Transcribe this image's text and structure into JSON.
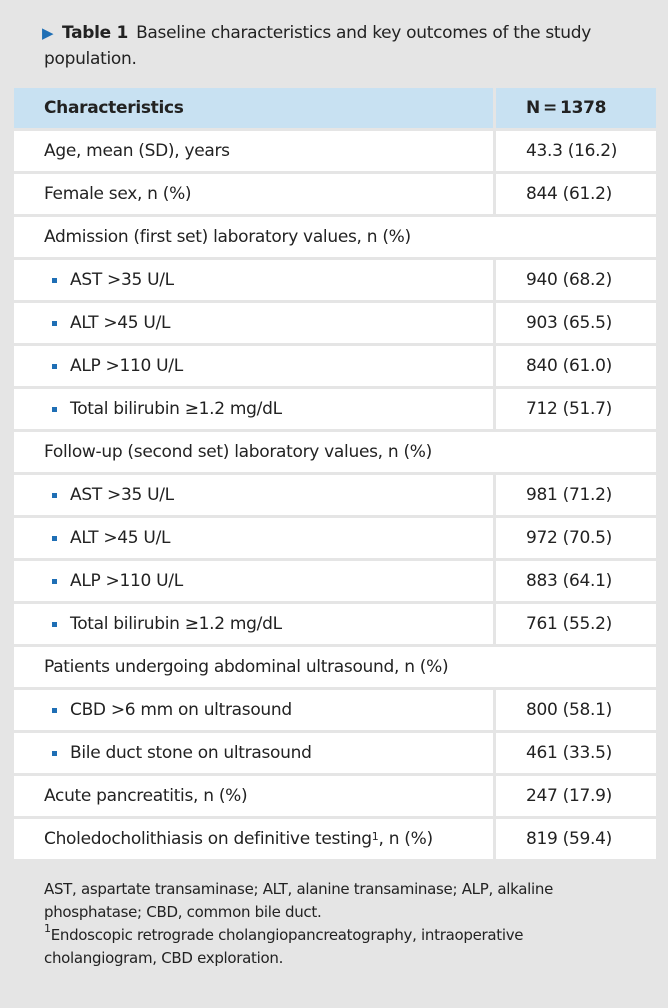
{
  "caption": {
    "label": "Table 1",
    "text": "Baseline characteristics and key outcomes of the study population."
  },
  "table": {
    "header": [
      "Characteristics",
      "N = 1378"
    ],
    "rows": [
      {
        "label": "Age, mean (SD), years",
        "value": "43.3 (16.2)"
      },
      {
        "label": "Female sex, n (%)",
        "value": "844 (61.2)"
      },
      {
        "label": "Admission (first set) laboratory values, n (%)",
        "items": [
          {
            "label": "AST >35 U/L",
            "value": "940 (68.2)"
          },
          {
            "label": "ALT >45 U/L",
            "value": "903 (65.5)"
          },
          {
            "label": "ALP >110 U/L",
            "value": "840 (61.0)"
          },
          {
            "label": "Total bilirubin ≥1.2 mg/dL",
            "value": "712 (51.7)"
          }
        ]
      },
      {
        "label": "Follow-up (second set) laboratory values, n (%)",
        "items": [
          {
            "label": "AST >35 U/L",
            "value": "981 (71.2)"
          },
          {
            "label": "ALT >45 U/L",
            "value": "972 (70.5)"
          },
          {
            "label": "ALP >110 U/L",
            "value": "883 (64.1)"
          },
          {
            "label": "Total bilirubin ≥1.2 mg/dL",
            "value": "761 (55.2)"
          }
        ]
      },
      {
        "label": "Patients undergoing abdominal ultrasound, n (%)",
        "items": [
          {
            "label": "CBD >6 mm on ultrasound",
            "value": "800 (58.1)"
          },
          {
            "label": "Bile duct stone on ultrasound",
            "value": "461 (33.5)"
          }
        ]
      },
      {
        "label": "Acute pancreatitis, n (%)",
        "value": "247 (17.9)"
      },
      {
        "label": "Choledocholithiasis on definitive testing",
        "footnote_mark": "1",
        "label_suffix": ", n (%)",
        "value": "819 (59.4)"
      }
    ]
  },
  "footnotes": {
    "abbreviations": "AST, aspartate transaminase; ALT, alanine transaminase; ALP, alkaline phosphatase; CBD, common bile duct.",
    "note": {
      "mark": "1",
      "text": "Endoscopic retrograde cholangiopancreatography, intraoperative cholangiogram, CBD exploration."
    }
  }
}
